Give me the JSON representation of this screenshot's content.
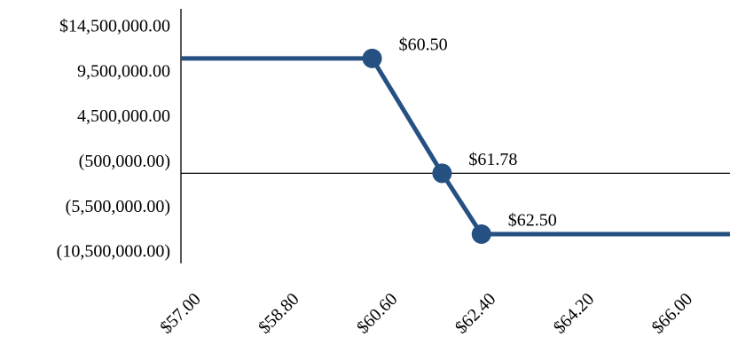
{
  "chart_data": {
    "type": "line",
    "title": "",
    "xlabel": "",
    "ylabel": "",
    "xlim": [
      57.0,
      67.05
    ],
    "ylim": [
      -10500000,
      14500000
    ],
    "x_tick_values": [
      57.0,
      58.8,
      60.6,
      62.4,
      64.2,
      66.0
    ],
    "x_tick_labels": [
      "$57.00",
      "$58.80",
      "$60.60",
      "$62.40",
      "$64.20",
      "$66.00"
    ],
    "y_tick_values": [
      14500000,
      9500000,
      4500000,
      -500000,
      -5500000,
      -10500000
    ],
    "y_tick_labels": [
      "$14,500,000.00",
      "9,500,000.00",
      "4,500,000.00",
      "(500,000.00)",
      "(5,500,000.00)",
      "(10,500,000.00)"
    ],
    "series": [
      {
        "color": "#245082",
        "points": [
          {
            "x": 57.0,
            "y": 12250000
          },
          {
            "x": 60.5,
            "y": 12250000
          },
          {
            "x": 61.78,
            "y": -500000
          },
          {
            "x": 62.5,
            "y": -7250000
          },
          {
            "x": 67.05,
            "y": -7250000
          }
        ],
        "markers": [
          {
            "x": 60.5,
            "y": 12250000,
            "label": "$60.50"
          },
          {
            "x": 61.78,
            "y": -500000,
            "label": "$61.78"
          },
          {
            "x": 62.5,
            "y": -7250000,
            "label": "$62.50"
          }
        ]
      }
    ],
    "grid": false,
    "legend": "none"
  }
}
